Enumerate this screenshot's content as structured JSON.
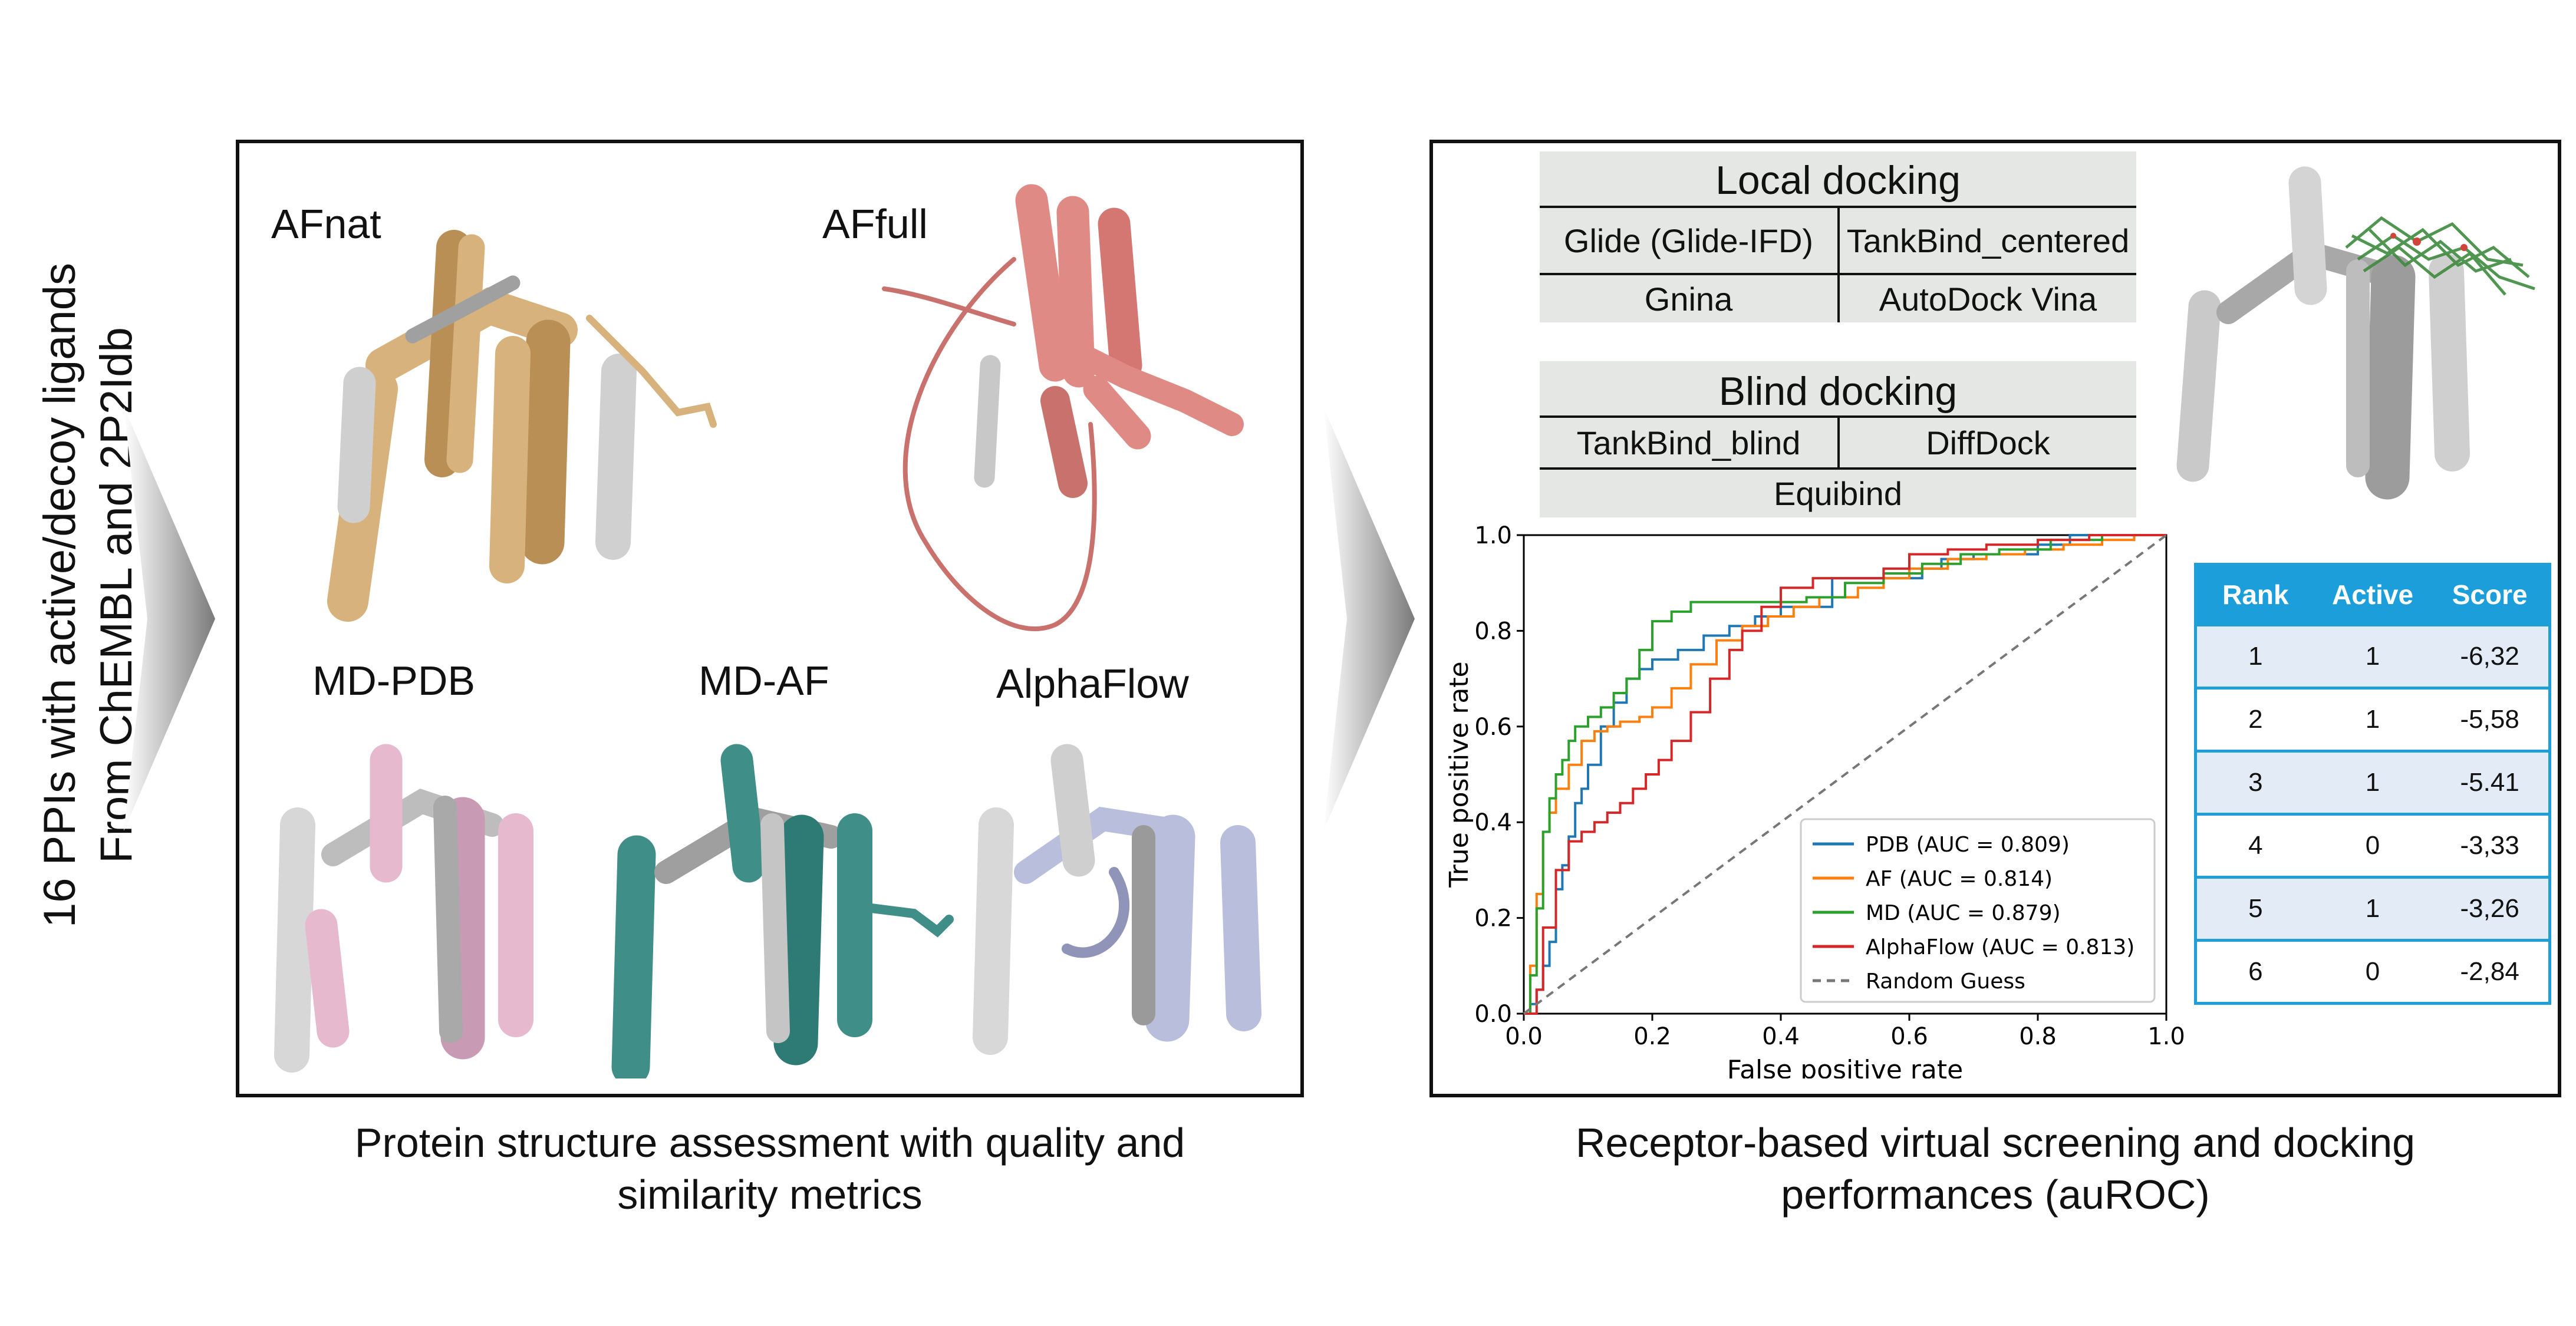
{
  "sidebar": {
    "line1": "16 PPIs with active/decoy ligands",
    "line2": "From ChEMBL and 2P2Idb"
  },
  "left_panel": {
    "labels": {
      "afnat": "AFnat",
      "affull": "AFfull",
      "mdpdb": "MD-PDB",
      "mdaf": "MD-AF",
      "alphaflow": "AlphaFlow"
    },
    "caption_line1": "Protein structure assessment with quality and",
    "caption_line2": "similarity metrics"
  },
  "right_panel": {
    "local_docking": {
      "title": "Local docking",
      "cells": [
        "Glide (Glide-IFD)",
        "TankBind_centered",
        "Gnina",
        "AutoDock Vina"
      ]
    },
    "blind_docking": {
      "title": "Blind docking",
      "cells": [
        "TankBind_blind",
        "DiffDock",
        "Equibind"
      ]
    },
    "caption_line1": "Receptor-based virtual screening and docking",
    "caption_line2": "performances (auROC)"
  },
  "rank_table": {
    "headers": [
      "Rank",
      "Active",
      "Score"
    ],
    "rows": [
      [
        "1",
        "1",
        "-6,32"
      ],
      [
        "2",
        "1",
        "-5,58"
      ],
      [
        "3",
        "1",
        "-5.41"
      ],
      [
        "4",
        "0",
        "-3,33"
      ],
      [
        "5",
        "1",
        "-3,26"
      ],
      [
        "6",
        "0",
        "-2,84"
      ]
    ]
  },
  "colors": {
    "afnat": "#d8b27c",
    "affull": "#e08a85",
    "mdpdb": "#e6b9cf",
    "mdaf": "#3f8f88",
    "alphaflow": "#b9bedd",
    "accent_blue": "#1b9ed9",
    "dock_bg": "#e4e7e3"
  },
  "chart_data": {
    "type": "line",
    "xlabel": "False positive rate",
    "ylabel": "True positive rate",
    "xlim": [
      0.0,
      1.0
    ],
    "ylim": [
      0.0,
      1.0
    ],
    "xticks": [
      "0.0",
      "0.2",
      "0.4",
      "0.6",
      "0.8",
      "1.0"
    ],
    "yticks": [
      "0.0",
      "0.2",
      "0.4",
      "0.6",
      "0.8",
      "1.0"
    ],
    "legend_position": "lower-right",
    "series": [
      {
        "name": "PDB (AUC = 0.809)",
        "color": "#1f77b4",
        "x": [
          0,
          0.01,
          0.02,
          0.03,
          0.04,
          0.05,
          0.05,
          0.06,
          0.07,
          0.08,
          0.09,
          0.1,
          0.12,
          0.14,
          0.16,
          0.18,
          0.2,
          0.24,
          0.28,
          0.32,
          0.36,
          0.4,
          0.45,
          0.48,
          0.48,
          0.55,
          0.62,
          0.65,
          0.7,
          0.8,
          0.85,
          0.95,
          1.0
        ],
        "y": [
          0,
          0.02,
          0.05,
          0.1,
          0.15,
          0.2,
          0.26,
          0.31,
          0.37,
          0.44,
          0.47,
          0.52,
          0.6,
          0.65,
          0.7,
          0.72,
          0.74,
          0.76,
          0.79,
          0.81,
          0.83,
          0.85,
          0.85,
          0.87,
          0.91,
          0.91,
          0.93,
          0.95,
          0.96,
          0.98,
          1.0,
          1.0,
          1.0
        ]
      },
      {
        "name": "AF (AUC = 0.814)",
        "color": "#ff7f0e",
        "x": [
          0,
          0.01,
          0.02,
          0.03,
          0.04,
          0.05,
          0.07,
          0.09,
          0.11,
          0.13,
          0.15,
          0.18,
          0.2,
          0.23,
          0.26,
          0.3,
          0.34,
          0.38,
          0.42,
          0.46,
          0.52,
          0.56,
          0.6,
          0.66,
          0.72,
          0.78,
          0.84,
          0.9,
          0.95,
          1.0
        ],
        "y": [
          0,
          0.1,
          0.25,
          0.38,
          0.42,
          0.47,
          0.52,
          0.57,
          0.59,
          0.6,
          0.61,
          0.62,
          0.64,
          0.68,
          0.73,
          0.78,
          0.81,
          0.83,
          0.85,
          0.87,
          0.89,
          0.91,
          0.93,
          0.95,
          0.96,
          0.97,
          0.98,
          0.99,
          1.0,
          1.0
        ]
      },
      {
        "name": "MD (AUC = 0.879)",
        "color": "#2ca02c",
        "x": [
          0,
          0.01,
          0.02,
          0.03,
          0.04,
          0.05,
          0.06,
          0.07,
          0.08,
          0.1,
          0.12,
          0.14,
          0.16,
          0.18,
          0.2,
          0.23,
          0.26,
          0.3,
          0.36,
          0.44,
          0.5,
          0.56,
          0.62,
          0.68,
          0.74,
          0.82,
          0.9,
          1.0
        ],
        "y": [
          0,
          0.08,
          0.22,
          0.38,
          0.45,
          0.5,
          0.53,
          0.57,
          0.6,
          0.62,
          0.64,
          0.67,
          0.7,
          0.76,
          0.82,
          0.84,
          0.86,
          0.86,
          0.86,
          0.87,
          0.9,
          0.92,
          0.94,
          0.96,
          0.97,
          0.99,
          1.0,
          1.0
        ]
      },
      {
        "name": "AlphaFlow (AUC = 0.813)",
        "color": "#d62728",
        "x": [
          0,
          0.02,
          0.03,
          0.05,
          0.07,
          0.09,
          0.11,
          0.13,
          0.15,
          0.17,
          0.19,
          0.21,
          0.23,
          0.26,
          0.29,
          0.32,
          0.34,
          0.37,
          0.4,
          0.45,
          0.5,
          0.56,
          0.6,
          0.66,
          0.72,
          0.8,
          0.88,
          1.0
        ],
        "y": [
          0,
          0.05,
          0.18,
          0.3,
          0.36,
          0.38,
          0.4,
          0.42,
          0.44,
          0.47,
          0.5,
          0.53,
          0.57,
          0.63,
          0.7,
          0.76,
          0.8,
          0.85,
          0.89,
          0.91,
          0.91,
          0.93,
          0.96,
          0.97,
          0.98,
          0.99,
          1.0,
          1.0
        ]
      },
      {
        "name": "Random Guess",
        "color": "#777777",
        "dashed": true,
        "x": [
          0,
          1.0
        ],
        "y": [
          0,
          1.0
        ]
      }
    ]
  }
}
